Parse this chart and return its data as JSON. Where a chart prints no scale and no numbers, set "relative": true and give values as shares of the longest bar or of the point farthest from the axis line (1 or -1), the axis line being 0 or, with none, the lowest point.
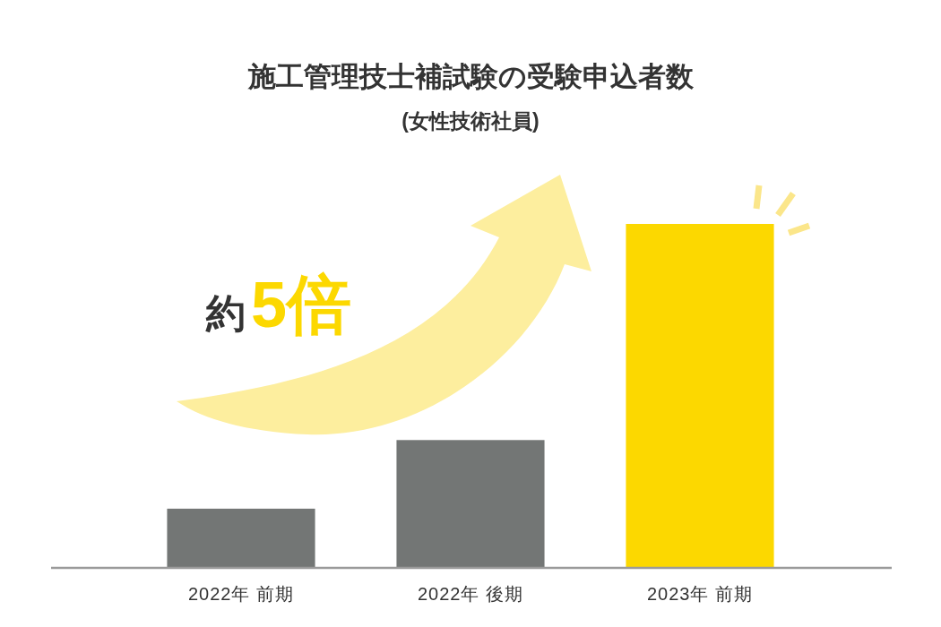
{
  "chart_data": {
    "type": "bar",
    "title": "施工管理技士補試験の受験申込者数",
    "subtitle": "(女性技術社員)",
    "categories": [
      "2022年 前期",
      "2022年 後期",
      "2023年 前期"
    ],
    "values": [
      0.17,
      0.37,
      1
    ],
    "colors": [
      "#737675",
      "#737675",
      "#fcd800"
    ],
    "relative": true,
    "annotations": [
      "約5倍"
    ]
  }
}
